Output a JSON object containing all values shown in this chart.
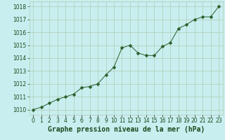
{
  "x": [
    0,
    1,
    2,
    3,
    4,
    5,
    6,
    7,
    8,
    9,
    10,
    11,
    12,
    13,
    14,
    15,
    16,
    17,
    18,
    19,
    20,
    21,
    22,
    23
  ],
  "y": [
    1010.0,
    1010.2,
    1010.5,
    1010.8,
    1011.0,
    1011.2,
    1011.7,
    1011.8,
    1012.0,
    1012.7,
    1013.3,
    1014.8,
    1015.0,
    1014.4,
    1014.2,
    1014.2,
    1014.9,
    1015.2,
    1016.3,
    1016.6,
    1017.0,
    1017.2,
    1017.2,
    1018.0
  ],
  "line_color": "#2a5e2a",
  "marker": "D",
  "marker_size": 2.5,
  "bg_color": "#c8eef0",
  "grid_color": "#b0ccb0",
  "xlabel": "Graphe pression niveau de la mer (hPa)",
  "xlabel_color": "#1a4a1a",
  "xlabel_fontsize": 7,
  "xtick_labels": [
    "0",
    "1",
    "2",
    "3",
    "4",
    "5",
    "6",
    "7",
    "8",
    "9",
    "10",
    "11",
    "12",
    "13",
    "14",
    "15",
    "16",
    "17",
    "18",
    "19",
    "20",
    "21",
    "22",
    "23"
  ],
  "ytick_min": 1010,
  "ytick_max": 1018,
  "ytick_step": 1,
  "ylim": [
    1009.6,
    1018.4
  ],
  "xlim": [
    -0.5,
    23.5
  ],
  "tick_color": "#1a4a1a",
  "tick_fontsize": 5.5,
  "ytick_fontsize": 5.5
}
